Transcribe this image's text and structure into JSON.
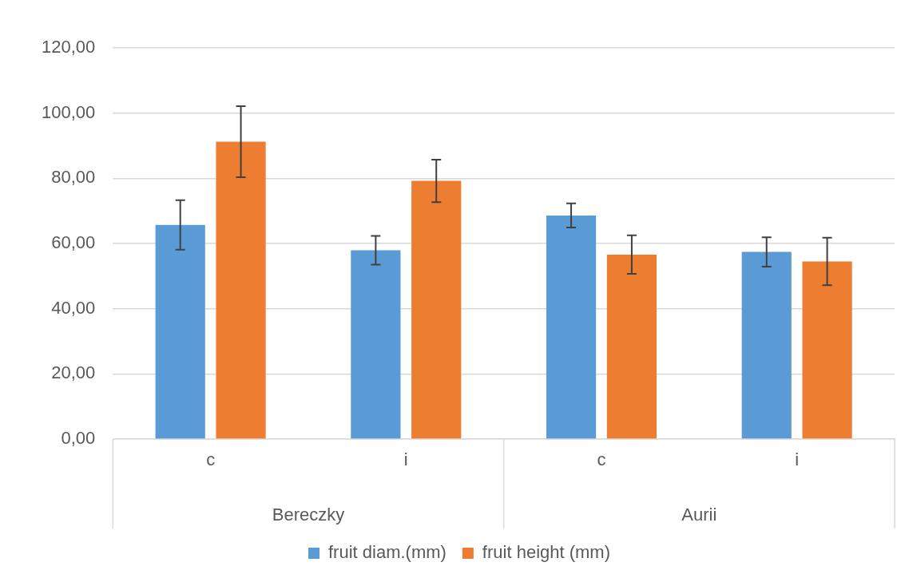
{
  "chart_data": {
    "type": "bar",
    "categories": [
      "c",
      "i",
      "c",
      "i"
    ],
    "series": [
      {
        "name": "fruit diam.(mm)",
        "color": "#5b9bd5",
        "values": [
          65.7,
          57.9,
          68.6,
          57.4
        ],
        "errors": [
          7.6,
          4.4,
          3.7,
          4.5
        ]
      },
      {
        "name": "fruit height (mm)",
        "color": "#ed7d31",
        "values": [
          91.2,
          79.2,
          56.6,
          54.5
        ],
        "errors": [
          10.9,
          6.5,
          5.9,
          7.3
        ]
      }
    ],
    "ylim": [
      0,
      120
    ],
    "yticks": [
      {
        "value": 0,
        "label": "0,00"
      },
      {
        "value": 20,
        "label": "20,00"
      },
      {
        "value": 40,
        "label": "40,00"
      },
      {
        "value": 60,
        "label": "60,00"
      },
      {
        "value": 80,
        "label": "80,00"
      },
      {
        "value": 100,
        "label": "100,00"
      },
      {
        "value": 120,
        "label": "120,00"
      }
    ],
    "grid": "y",
    "legend": "bottom",
    "annotations": [
      "Bereczky",
      "Aurii"
    ]
  }
}
